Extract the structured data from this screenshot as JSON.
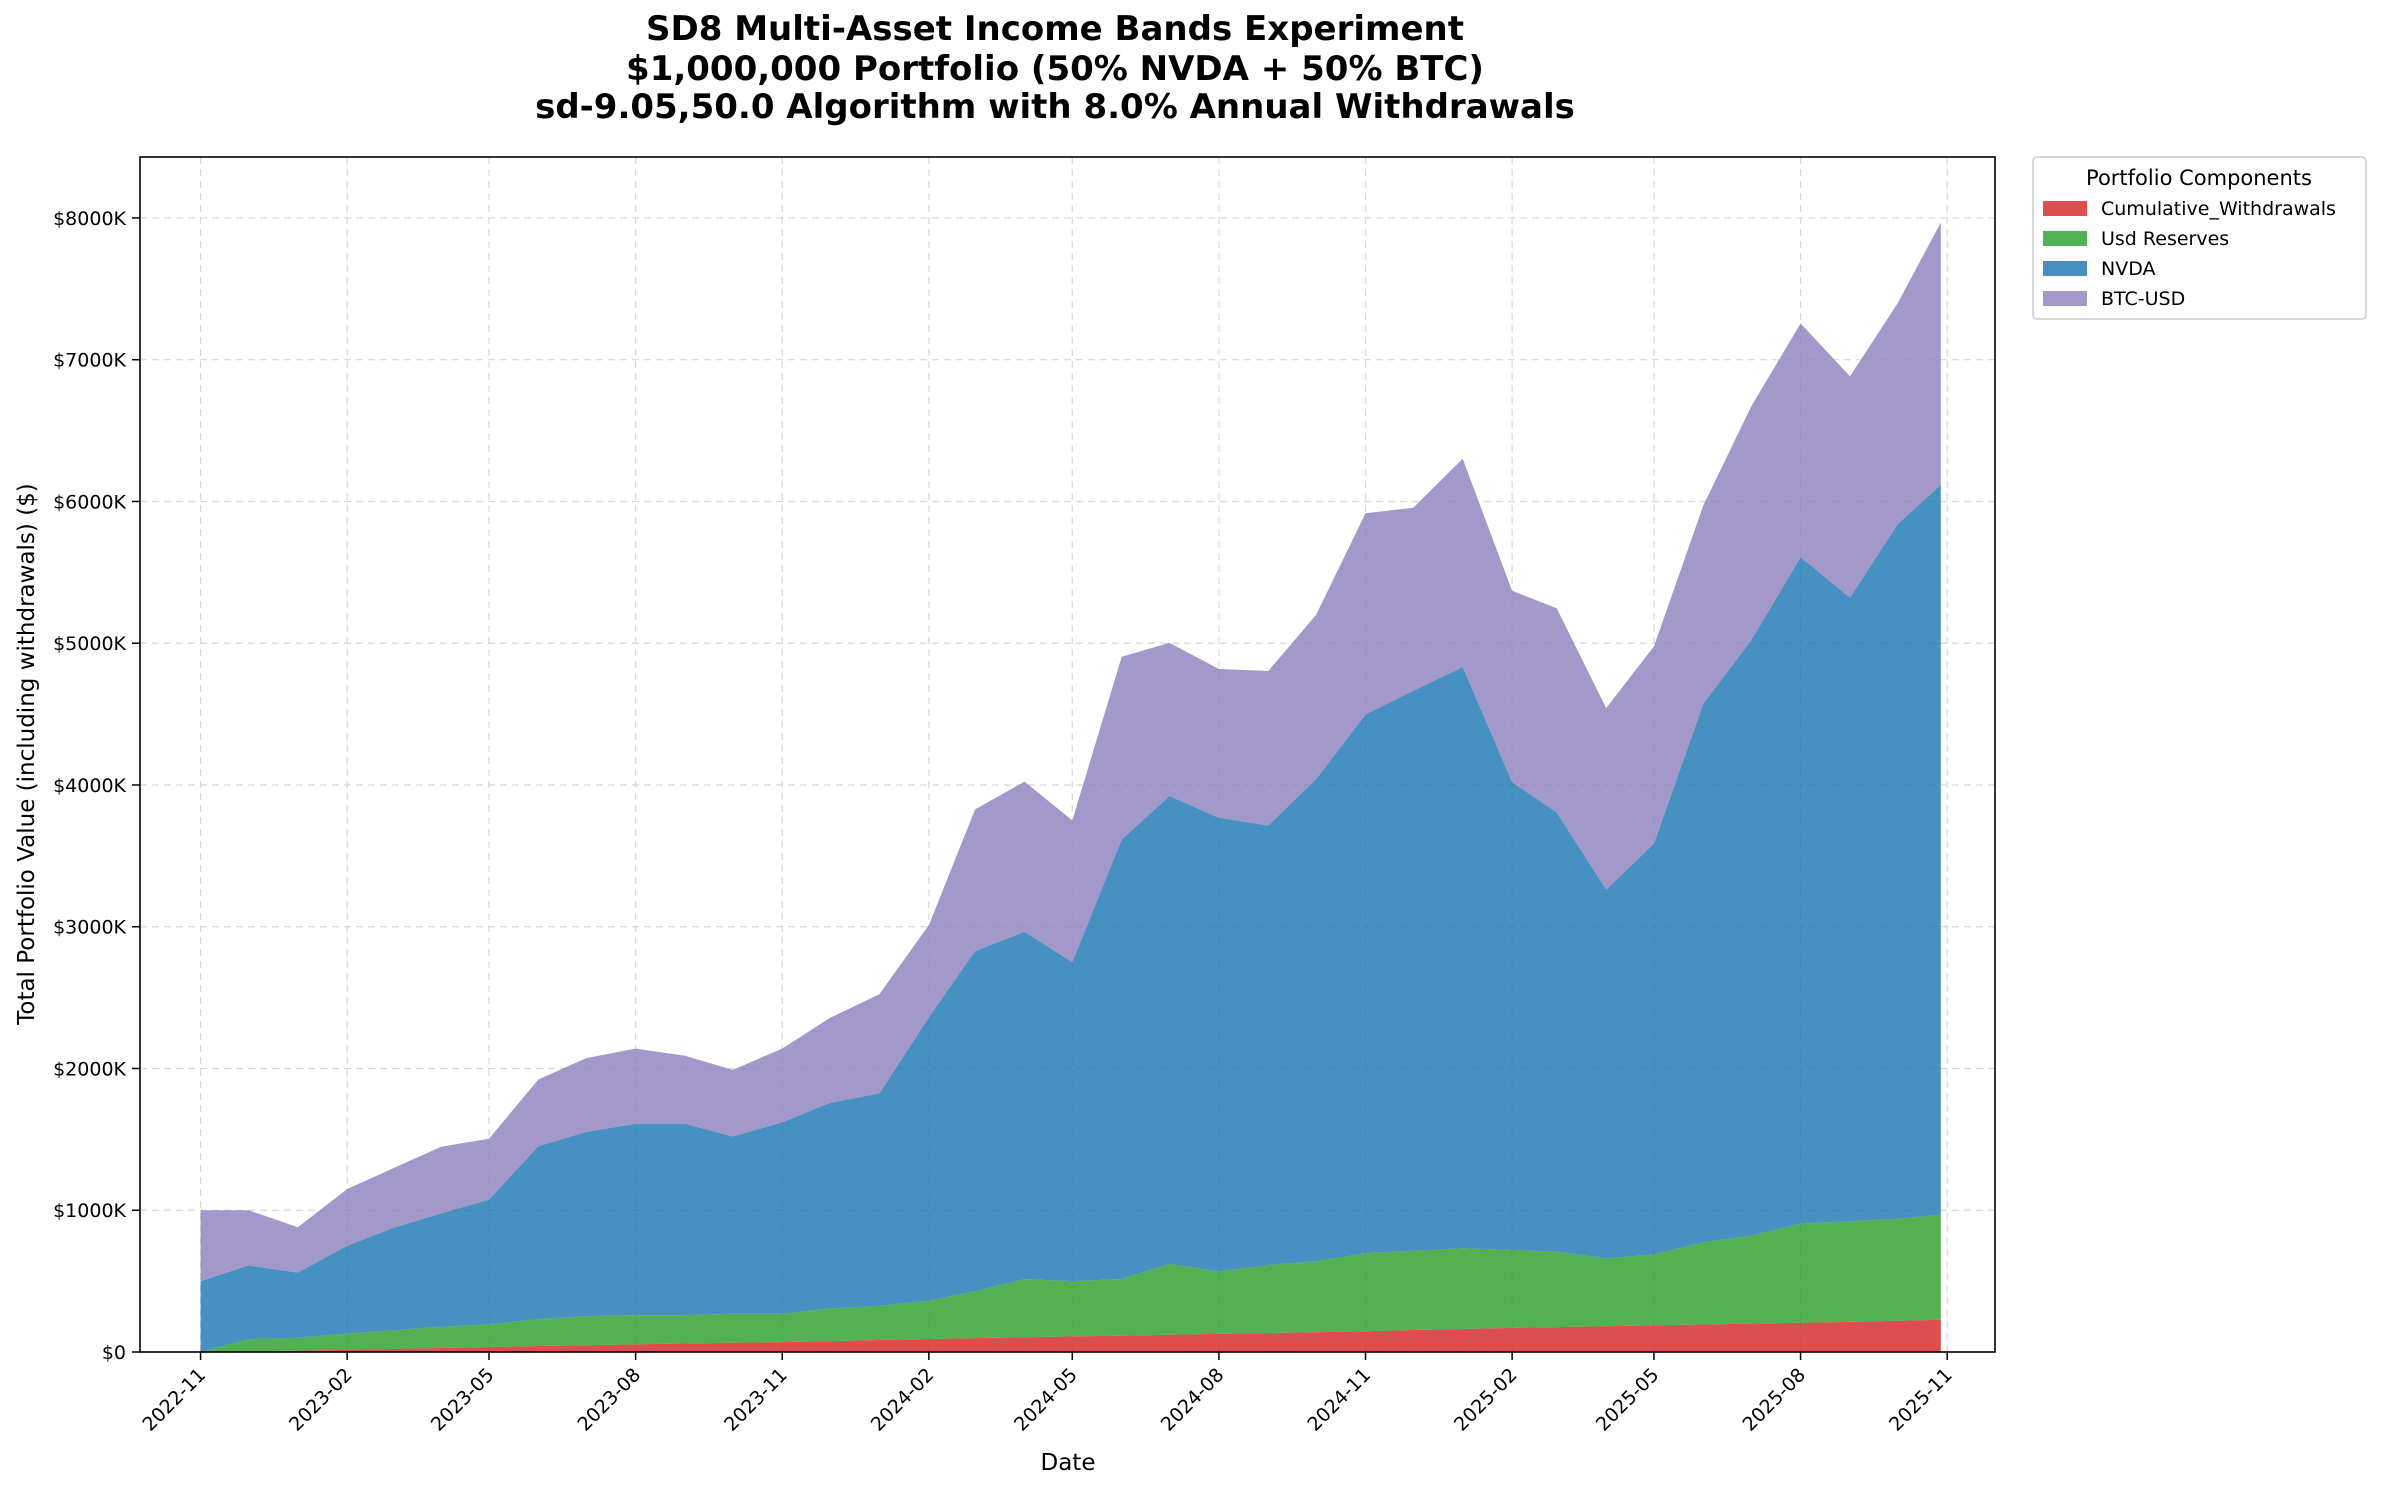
{
  "chart_data": {
    "type": "area",
    "stacked": true,
    "title": [
      "SD8 Multi-Asset Income Bands Experiment",
      "$1,000,000 Portfolio (50% NVDA + 50% BTC)",
      "sd-9.05,50.0 Algorithm with 8.0% Annual Withdrawals"
    ],
    "xlabel": "Date",
    "ylabel": "Total Portfolio Value (including withdrawals) ($)",
    "xlim": [
      "2022-09-24",
      "2025-12-01"
    ],
    "ylim": [
      0,
      8430000
    ],
    "grid": true,
    "legend": {
      "title": "Portfolio Components",
      "placement": "outside-upper-right"
    },
    "x_ticks": [
      "2022-11",
      "2023-02",
      "2023-05",
      "2023-08",
      "2023-11",
      "2024-02",
      "2024-05",
      "2024-08",
      "2024-11",
      "2025-02",
      "2025-05",
      "2025-08",
      "2025-11"
    ],
    "y_ticks": [
      {
        "value": 0,
        "label": "$0"
      },
      {
        "value": 1000000,
        "label": "$1000K"
      },
      {
        "value": 2000000,
        "label": "$2000K"
      },
      {
        "value": 3000000,
        "label": "$3000K"
      },
      {
        "value": 4000000,
        "label": "$4000K"
      },
      {
        "value": 5000000,
        "label": "$5000K"
      },
      {
        "value": 6000000,
        "label": "$6000K"
      },
      {
        "value": 7000000,
        "label": "$7000K"
      },
      {
        "value": 8000000,
        "label": "$8000K"
      }
    ],
    "x": [
      "2022-11-01",
      "2022-12-01",
      "2023-01-01",
      "2023-02-01",
      "2023-03-01",
      "2023-04-01",
      "2023-05-01",
      "2023-06-01",
      "2023-07-01",
      "2023-08-01",
      "2023-09-01",
      "2023-10-01",
      "2023-11-01",
      "2023-12-01",
      "2024-01-01",
      "2024-02-01",
      "2024-03-01",
      "2024-04-01",
      "2024-05-01",
      "2024-06-01",
      "2024-07-01",
      "2024-08-01",
      "2024-09-01",
      "2024-10-01",
      "2024-11-01",
      "2024-12-01",
      "2025-01-01",
      "2025-02-01",
      "2025-03-01",
      "2025-04-01",
      "2025-05-01",
      "2025-06-01",
      "2025-07-01",
      "2025-08-01",
      "2025-09-01",
      "2025-10-01",
      "2025-10-28"
    ],
    "series": [
      {
        "name": "Cumulative_Withdrawals",
        "color": "#d62728",
        "values": [
          0,
          5000,
          10000,
          15000,
          22000,
          28000,
          35000,
          42000,
          48000,
          55000,
          60000,
          65000,
          70000,
          77000,
          85000,
          92000,
          98000,
          104000,
          110000,
          115000,
          122000,
          128000,
          134000,
          140000,
          147000,
          155000,
          162000,
          170000,
          176000,
          182000,
          188000,
          194000,
          200000,
          206000,
          212000,
          220000,
          228000
        ]
      },
      {
        "name": "Usd Reserves",
        "color": "#2ca02c",
        "values": [
          0,
          85000,
          90000,
          115000,
          130000,
          150000,
          160000,
          190000,
          205000,
          205000,
          200000,
          205000,
          200000,
          230000,
          240000,
          270000,
          330000,
          410000,
          390000,
          400000,
          500000,
          440000,
          480000,
          500000,
          550000,
          560000,
          570000,
          550000,
          530000,
          480000,
          500000,
          580000,
          620000,
          700000,
          710000,
          720000,
          740000
        ]
      },
      {
        "name": "NVDA",
        "color": "#1f77b4",
        "values": [
          500000,
          520000,
          460000,
          620000,
          720000,
          800000,
          880000,
          1220000,
          1300000,
          1350000,
          1350000,
          1250000,
          1350000,
          1450000,
          1500000,
          2000000,
          2400000,
          2450000,
          2250000,
          3100000,
          3300000,
          3200000,
          3100000,
          3400000,
          3800000,
          3950000,
          4100000,
          3300000,
          3100000,
          2600000,
          2900000,
          3800000,
          4200000,
          4700000,
          4400000,
          4900000,
          5150000
        ]
      },
      {
        "name": "BTC-USD",
        "color": "#8d81bd",
        "values": [
          500000,
          390000,
          320000,
          400000,
          420000,
          470000,
          430000,
          470000,
          520000,
          530000,
          480000,
          470000,
          520000,
          600000,
          700000,
          650000,
          1000000,
          1060000,
          1000000,
          1290000,
          1080000,
          1050000,
          1090000,
          1160000,
          1420000,
          1290000,
          1470000,
          1350000,
          1440000,
          1280000,
          1390000,
          1400000,
          1650000,
          1650000,
          1560000,
          1560000,
          1850000
        ]
      }
    ]
  }
}
